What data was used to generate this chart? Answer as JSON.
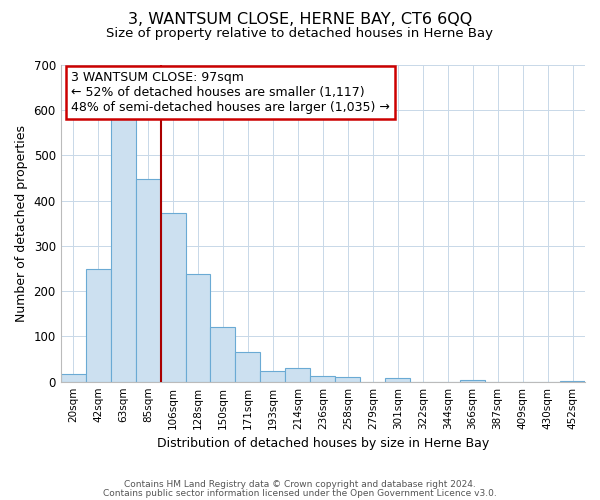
{
  "title": "3, WANTSUM CLOSE, HERNE BAY, CT6 6QQ",
  "subtitle": "Size of property relative to detached houses in Herne Bay",
  "xlabel": "Distribution of detached houses by size in Herne Bay",
  "ylabel": "Number of detached properties",
  "bar_labels": [
    "20sqm",
    "42sqm",
    "63sqm",
    "85sqm",
    "106sqm",
    "128sqm",
    "150sqm",
    "171sqm",
    "193sqm",
    "214sqm",
    "236sqm",
    "258sqm",
    "279sqm",
    "301sqm",
    "322sqm",
    "344sqm",
    "366sqm",
    "387sqm",
    "409sqm",
    "430sqm",
    "452sqm"
  ],
  "bar_values": [
    17,
    248,
    583,
    449,
    372,
    237,
    121,
    66,
    23,
    30,
    12,
    10,
    0,
    8,
    0,
    0,
    4,
    0,
    0,
    0,
    2
  ],
  "bar_color": "#cce0f0",
  "bar_edge_color": "#6aaad4",
  "ylim": [
    0,
    700
  ],
  "yticks": [
    0,
    100,
    200,
    300,
    400,
    500,
    600,
    700
  ],
  "vline_x": 3.5,
  "vline_color": "#aa0000",
  "annotation_title": "3 WANTSUM CLOSE: 97sqm",
  "annotation_line1": "← 52% of detached houses are smaller (1,117)",
  "annotation_line2": "48% of semi-detached houses are larger (1,035) →",
  "annotation_box_color": "#ffffff",
  "annotation_box_edge": "#cc0000",
  "footer1": "Contains HM Land Registry data © Crown copyright and database right 2024.",
  "footer2": "Contains public sector information licensed under the Open Government Licence v3.0.",
  "background_color": "#ffffff",
  "grid_color": "#c8d8e8"
}
